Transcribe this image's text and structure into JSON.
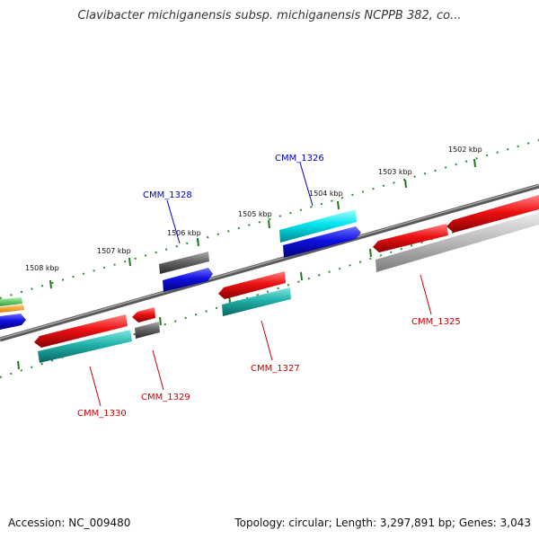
{
  "title": "Clavibacter michiganensis subsp. michiganensis NCPPB 382, co...",
  "footer": {
    "accession": "Accession: NC_009480",
    "stats": "Topology: circular; Length: 3,297,891 bp; Genes: 3,043"
  },
  "kbp_ticks": [
    "1508 kbp",
    "1507 kbp",
    "1506 kbp",
    "1505 kbp",
    "1504 kbp",
    "1503 kbp",
    "1502 kbp"
  ],
  "gene_labels": {
    "cmm_1328": "CMM_1328",
    "cmm_1326": "CMM_1326",
    "cmm_1329": "CMM_1329",
    "cmm_1330": "CMM_1330",
    "cmm_1327": "CMM_1327",
    "cmm_1325": "CMM_1325"
  },
  "colors": {
    "forward_label": "#0000cc",
    "reverse_label": "#cc0000",
    "backbone": "#777777",
    "tick": "#228b22",
    "red": "#e01010",
    "teal": "#20b2aa",
    "cyan": "#00e5ee",
    "blue": "#1010e0",
    "gray": "#666666",
    "lightgray": "#b0b0b0"
  }
}
